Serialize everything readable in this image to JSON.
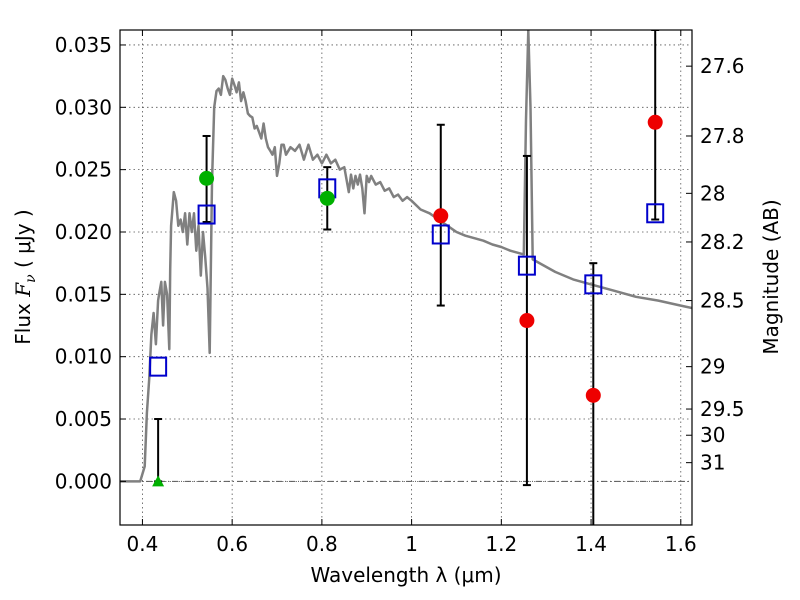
{
  "chart_data": {
    "type": "line",
    "title": "",
    "xlabel": "Wavelength  λ (μm)",
    "ylabel": "Flux  F_ν  ( μJy )",
    "ylabel_parts": {
      "pre": "Flux  ",
      "symbol": "F",
      "subscript": "ν",
      "post": "  ( μJy )"
    },
    "y2label": "Magnitude (AB)",
    "xlim": [
      0.35,
      1.625
    ],
    "ylim": [
      -0.0035,
      0.0362
    ],
    "grid": true,
    "x_ticks": [
      0.4,
      0.6,
      0.8,
      1.0,
      1.2,
      1.4,
      1.6
    ],
    "x_tick_labels": [
      "0.4",
      "0.6",
      "0.8",
      "1",
      "1.2",
      "1.4",
      "1.6"
    ],
    "y_ticks": [
      0.0,
      0.005,
      0.01,
      0.015,
      0.02,
      0.025,
      0.03,
      0.035
    ],
    "y_tick_labels": [
      "0.000",
      "0.005",
      "0.010",
      "0.015",
      "0.020",
      "0.025",
      "0.030",
      "0.035"
    ],
    "y2_ticks": [
      {
        "label": "27.6",
        "flux": 0.0333
      },
      {
        "label": "27.8",
        "flux": 0.0277
      },
      {
        "label": "28",
        "flux": 0.0231
      },
      {
        "label": "28.2",
        "flux": 0.0192
      },
      {
        "label": "28.5",
        "flux": 0.0145
      },
      {
        "label": "29",
        "flux": 0.0092
      },
      {
        "label": "29.5",
        "flux": 0.0058
      },
      {
        "label": "30",
        "flux": 0.0037
      },
      {
        "label": "31",
        "flux": 0.0015
      }
    ],
    "colors": {
      "model": "#808080",
      "model_photometry": "#0000cc",
      "detection_green": "#00b000",
      "measurement_red": "#ee0000",
      "error_bar": "#000000",
      "zero_line": "#555555"
    },
    "series": [
      {
        "kind": "model_sed",
        "x": [
          0.35,
          0.395,
          0.405,
          0.41,
          0.415,
          0.42,
          0.425,
          0.43,
          0.435,
          0.438,
          0.442,
          0.446,
          0.45,
          0.455,
          0.46,
          0.462,
          0.464,
          0.47,
          0.475,
          0.48,
          0.485,
          0.49,
          0.495,
          0.5,
          0.505,
          0.51,
          0.515,
          0.52,
          0.525,
          0.53,
          0.535,
          0.54,
          0.545,
          0.55,
          0.555,
          0.56,
          0.565,
          0.57,
          0.575,
          0.58,
          0.585,
          0.59,
          0.595,
          0.6,
          0.605,
          0.61,
          0.615,
          0.62,
          0.625,
          0.63,
          0.635,
          0.64,
          0.645,
          0.65,
          0.655,
          0.66,
          0.665,
          0.67,
          0.675,
          0.68,
          0.685,
          0.69,
          0.695,
          0.7,
          0.705,
          0.71,
          0.715,
          0.72,
          0.73,
          0.74,
          0.75,
          0.76,
          0.77,
          0.78,
          0.79,
          0.8,
          0.81,
          0.82,
          0.83,
          0.84,
          0.85,
          0.86,
          0.865,
          0.87,
          0.875,
          0.88,
          0.885,
          0.89,
          0.895,
          0.9,
          0.905,
          0.91,
          0.92,
          0.93,
          0.94,
          0.95,
          0.96,
          0.97,
          0.98,
          0.99,
          1.0,
          1.02,
          1.04,
          1.06,
          1.08,
          1.1,
          1.12,
          1.14,
          1.16,
          1.18,
          1.2,
          1.22,
          1.24,
          1.25,
          1.255,
          1.26,
          1.265,
          1.27,
          1.28,
          1.3,
          1.32,
          1.34,
          1.36,
          1.38,
          1.4,
          1.45,
          1.5,
          1.55,
          1.6,
          1.625
        ],
        "y": [
          0.0,
          0.0,
          0.0012,
          0.0055,
          0.0082,
          0.0118,
          0.0135,
          0.011,
          0.0145,
          0.0152,
          0.016,
          0.0125,
          0.016,
          0.015,
          0.0106,
          0.017,
          0.0205,
          0.0232,
          0.0225,
          0.0205,
          0.021,
          0.02,
          0.0215,
          0.019,
          0.0215,
          0.02,
          0.0215,
          0.0185,
          0.0205,
          0.0165,
          0.02,
          0.018,
          0.0155,
          0.0103,
          0.024,
          0.03,
          0.0313,
          0.0315,
          0.031,
          0.0325,
          0.0322,
          0.0315,
          0.031,
          0.0323,
          0.0318,
          0.0312,
          0.032,
          0.0305,
          0.0312,
          0.0305,
          0.0295,
          0.0293,
          0.0292,
          0.0283,
          0.0285,
          0.028,
          0.0275,
          0.0287,
          0.0275,
          0.0268,
          0.0265,
          0.0262,
          0.0268,
          0.0245,
          0.0255,
          0.027,
          0.027,
          0.0262,
          0.0268,
          0.0265,
          0.027,
          0.0258,
          0.027,
          0.0258,
          0.0262,
          0.0255,
          0.0262,
          0.0255,
          0.0258,
          0.025,
          0.0252,
          0.0232,
          0.0246,
          0.0235,
          0.0245,
          0.0238,
          0.0246,
          0.0235,
          0.0215,
          0.0245,
          0.024,
          0.0245,
          0.0238,
          0.024,
          0.0233,
          0.0235,
          0.0228,
          0.023,
          0.0225,
          0.0228,
          0.0225,
          0.0218,
          0.0215,
          0.021,
          0.0205,
          0.02,
          0.0197,
          0.0195,
          0.0193,
          0.019,
          0.0188,
          0.0185,
          0.0183,
          0.0182,
          0.029,
          0.0362,
          0.03,
          0.0178,
          0.0176,
          0.0172,
          0.0168,
          0.0165,
          0.0162,
          0.016,
          0.0158,
          0.0153,
          0.0148,
          0.0145,
          0.0141,
          0.0139
        ]
      },
      {
        "kind": "model_photometry",
        "marker": "open-square",
        "x": [
          0.435,
          0.543,
          0.812,
          1.065,
          1.257,
          1.405,
          1.543
        ],
        "y": [
          0.0092,
          0.0214,
          0.0235,
          0.0198,
          0.0173,
          0.0158,
          0.0215
        ]
      },
      {
        "kind": "detection",
        "marker": "filled-circle",
        "x": [
          0.543,
          0.812
        ],
        "y": [
          0.0243,
          0.0227
        ],
        "y_err_low": [
          0.0208,
          0.0202
        ],
        "y_err_high": [
          0.0277,
          0.0252
        ]
      },
      {
        "kind": "upper_limit",
        "marker": "triangle-up",
        "x": [
          0.435
        ],
        "y": [
          0.0
        ],
        "y_err_low": [
          0.0
        ],
        "y_err_high": [
          0.005
        ]
      },
      {
        "kind": "measurement",
        "marker": "filled-circle",
        "x": [
          1.065,
          1.257,
          1.405,
          1.543
        ],
        "y": [
          0.0213,
          0.0129,
          0.0069,
          0.0288
        ],
        "y_err_low": [
          0.0141,
          -0.0003,
          -0.004,
          0.021
        ],
        "y_err_high": [
          0.0286,
          0.0261,
          0.0175,
          0.0362
        ]
      }
    ]
  }
}
